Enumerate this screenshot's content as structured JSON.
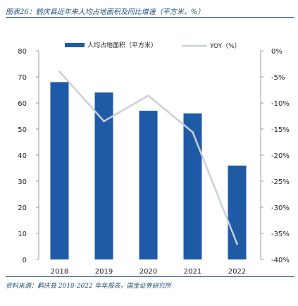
{
  "figure": {
    "title": "图表26：鹤庆县近年来人均占地面积及同比增速（平方米，%）",
    "source": "资料来源：鹤庆县 2018-2022 年年报表，国金证券研究所"
  },
  "chart_data": {
    "type": "bar+line",
    "categories": [
      "2018",
      "2019",
      "2020",
      "2021",
      "2022"
    ],
    "series": [
      {
        "name": "人均占地面积（平方米）",
        "type": "bar",
        "axis": "left",
        "color": "#1f5aa6",
        "values": [
          68,
          64,
          57,
          56,
          36
        ]
      },
      {
        "name": "YOY（%）",
        "type": "line",
        "axis": "right",
        "color": "#c8d0d8",
        "values": [
          -4.0,
          -13.5,
          -8.6,
          -15.6,
          -37.0
        ]
      }
    ],
    "left_axis": {
      "ylim": [
        0,
        80
      ],
      "ticks": [
        "0",
        "10",
        "20",
        "30",
        "40",
        "50",
        "60",
        "70",
        "80"
      ]
    },
    "right_axis": {
      "ylim": [
        -40,
        0
      ],
      "ticks": [
        "-40%",
        "-35%",
        "-30%",
        "-25%",
        "-20%",
        "-15%",
        "-10%",
        "-5%",
        "0%"
      ]
    },
    "legend_position": "top",
    "grid": false
  }
}
